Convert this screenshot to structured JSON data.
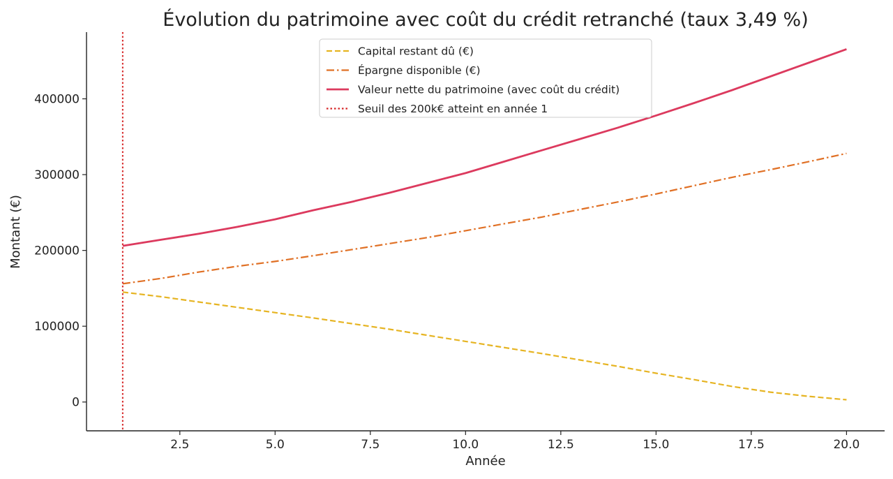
{
  "chart_data": {
    "type": "line",
    "title": "Évolution du patrimoine avec coût du crédit retranché (taux 3,49 %)",
    "xlabel": "Année",
    "ylabel": "Montant (€)",
    "xlim": [
      0.05,
      21.0
    ],
    "ylim": [
      -38000,
      488000
    ],
    "x_ticks": [
      2.5,
      5.0,
      7.5,
      10.0,
      12.5,
      15.0,
      17.5,
      20.0
    ],
    "x_tick_labels": [
      "2.5",
      "5.0",
      "7.5",
      "10.0",
      "12.5",
      "15.0",
      "17.5",
      "20.0"
    ],
    "y_ticks": [
      0,
      100000,
      200000,
      300000,
      400000
    ],
    "y_tick_labels": [
      "0",
      "100000",
      "200000",
      "300000",
      "400000"
    ],
    "grid": false,
    "legend_position": "top-center",
    "x": [
      1,
      2,
      3,
      4,
      5,
      6,
      7,
      8,
      9,
      10,
      11,
      12,
      13,
      14,
      15,
      16,
      17,
      18,
      19,
      20
    ],
    "series": [
      {
        "name": "Capital restant dû (€)",
        "style": "dashed",
        "color": "#e6b422",
        "values": [
          145000,
          139000,
          132000,
          125000,
          118000,
          111000,
          103500,
          96000,
          88000,
          80000,
          72000,
          64000,
          55500,
          47000,
          38000,
          29500,
          20500,
          13000,
          7500,
          3000
        ]
      },
      {
        "name": "Épargne disponible (€)",
        "style": "dashdot",
        "color": "#e07025",
        "values": [
          156000,
          163000,
          171500,
          179000,
          185500,
          193000,
          201000,
          209000,
          217000,
          226000,
          235000,
          244000,
          254000,
          264000,
          274500,
          285500,
          296500,
          306500,
          317000,
          328000
        ]
      },
      {
        "name": "Valeur nette du patrimoine (avec coût du crédit)",
        "style": "solid",
        "color": "#dc3a5e",
        "values": [
          206000,
          214000,
          222000,
          231000,
          241000,
          253000,
          264000,
          276000,
          289000,
          302000,
          317000,
          332000,
          347000,
          362000,
          378000,
          394500,
          411500,
          429500,
          447500,
          465500
        ]
      }
    ],
    "threshold": {
      "name": "Seuil des 200k€ atteint en année 1",
      "style": "dotted",
      "color": "#d62728",
      "x": 1
    }
  }
}
